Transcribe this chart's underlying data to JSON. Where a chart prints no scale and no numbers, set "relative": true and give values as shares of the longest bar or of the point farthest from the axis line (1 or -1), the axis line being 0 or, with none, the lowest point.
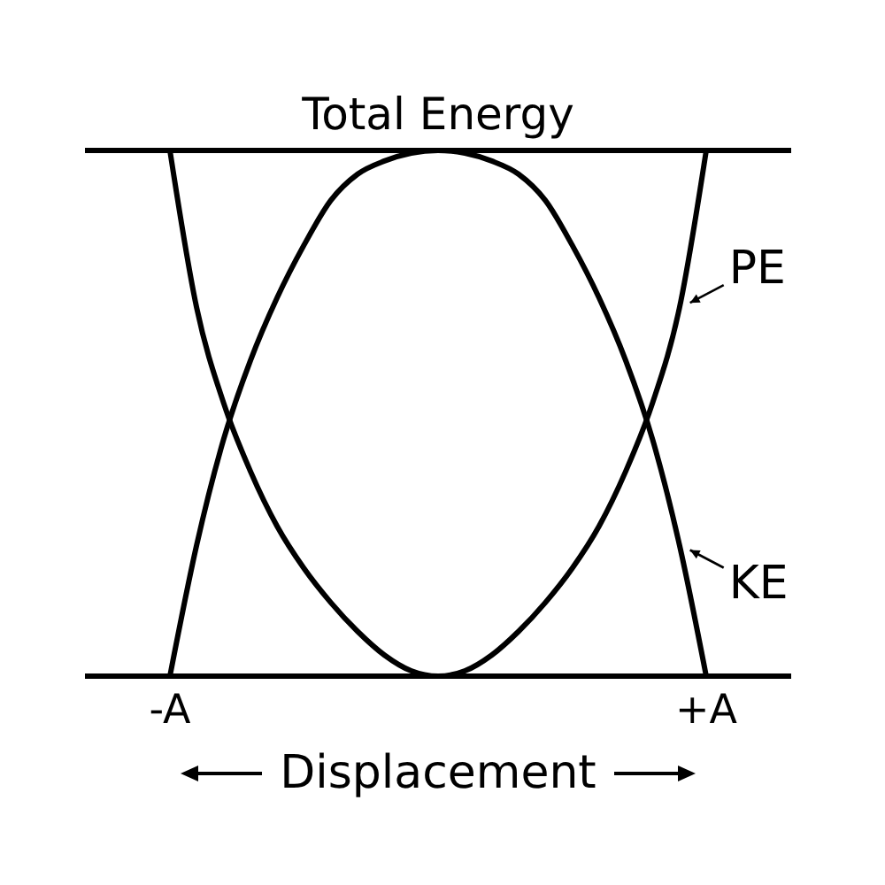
{
  "chart_data": {
    "type": "line",
    "relative": true,
    "xlabel": "Displacement",
    "tick_labels": "x",
    "marker": "none",
    "line_style": "solid",
    "legend": "right",
    "categories": [
      "-A",
      null,
      null,
      null,
      null,
      null,
      null,
      null,
      null,
      null,
      null,
      null,
      null,
      null,
      null,
      null,
      null,
      null,
      null,
      null,
      "+A"
    ],
    "ref_lines": [
      {
        "axis": "y",
        "value": 1,
        "label": "Total Energy"
      }
    ],
    "series": [
      {
        "name": "PE",
        "color": "#000000",
        "values": [
          1,
          0.7,
          0.52,
          0.39,
          0.285,
          0.205,
          0.14,
          0.085,
          0.04,
          0.01,
          0,
          0.01,
          0.04,
          0.085,
          0.14,
          0.205,
          0.285,
          0.39,
          0.52,
          0.7,
          1
        ]
      },
      {
        "name": "KE",
        "color": "#000000",
        "values": [
          0,
          0.25,
          0.45,
          0.6,
          0.72,
          0.82,
          0.905,
          0.955,
          0.98,
          0.995,
          1,
          0.995,
          0.98,
          0.955,
          0.905,
          0.82,
          0.72,
          0.6,
          0.45,
          0.25,
          0
        ]
      }
    ]
  }
}
